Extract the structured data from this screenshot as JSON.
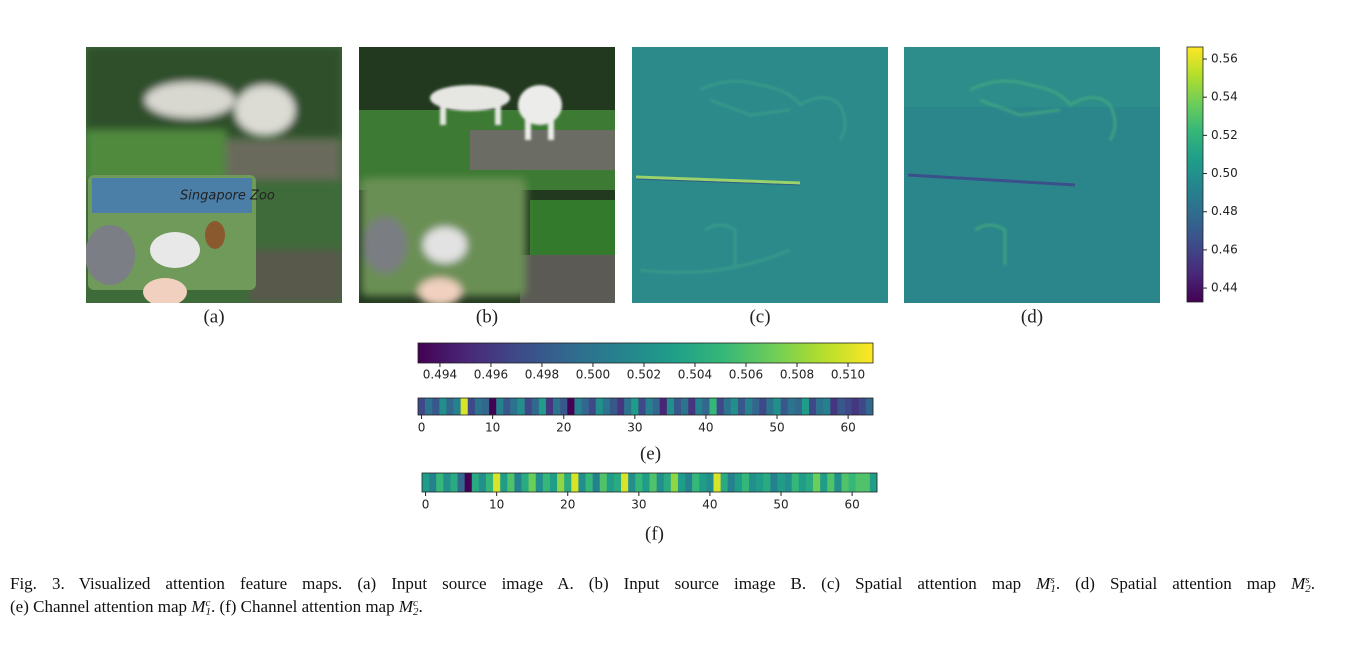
{
  "panels": [
    {
      "label": "(a)"
    },
    {
      "label": "(b)"
    },
    {
      "label": "(c)"
    },
    {
      "label": "(d)"
    }
  ],
  "colorbar_vertical": {
    "lim": [
      0.4327,
      0.5663
    ],
    "ticks": [
      0.44,
      0.46,
      0.48,
      {
        "value": 0.5,
        "label": "0.50"
      },
      0.52,
      0.54,
      0.56
    ]
  },
  "colorbar_horizontal": {
    "lim": [
      0.49314,
      0.51098
    ],
    "ticks": [
      0.494,
      0.496,
      0.498,
      {
        "value": 0.5,
        "label": "0.500"
      },
      0.502,
      0.504,
      0.506,
      0.508,
      {
        "value": 0.51,
        "label": "0.510"
      }
    ]
  },
  "strips": [
    {
      "label": "(e)",
      "xlim": [
        -0.5,
        63.5
      ],
      "xticks": [
        0,
        10,
        20,
        30,
        40,
        50,
        60
      ],
      "values": [
        0.497,
        0.5,
        0.498,
        0.502,
        0.499,
        0.501,
        0.51,
        0.497,
        0.5,
        0.499,
        0.493,
        0.501,
        0.498,
        0.5,
        0.502,
        0.497,
        0.499,
        0.503,
        0.496,
        0.5,
        0.498,
        0.493,
        0.501,
        0.499,
        0.497,
        0.502,
        0.5,
        0.498,
        0.496,
        0.5,
        0.503,
        0.497,
        0.501,
        0.499,
        0.495,
        0.502,
        0.498,
        0.5,
        0.496,
        0.501,
        0.499,
        0.505,
        0.497,
        0.5,
        0.502,
        0.498,
        0.501,
        0.499,
        0.497,
        0.5,
        0.502,
        0.498,
        0.5,
        0.499,
        0.503,
        0.497,
        0.5,
        0.501,
        0.496,
        0.498,
        0.497,
        0.496,
        0.497,
        0.499
      ]
    },
    {
      "label": "(f)",
      "xlim": [
        -0.5,
        63.5
      ],
      "xticks": [
        0,
        10,
        20,
        30,
        40,
        50,
        60
      ],
      "values": [
        0.503,
        0.501,
        0.505,
        0.502,
        0.504,
        0.499,
        0.493,
        0.504,
        0.502,
        0.505,
        0.51,
        0.503,
        0.506,
        0.501,
        0.504,
        0.507,
        0.502,
        0.505,
        0.503,
        0.508,
        0.504,
        0.51,
        0.502,
        0.505,
        0.501,
        0.506,
        0.503,
        0.504,
        0.51,
        0.502,
        0.505,
        0.503,
        0.506,
        0.502,
        0.504,
        0.508,
        0.503,
        0.501,
        0.505,
        0.503,
        0.502,
        0.51,
        0.504,
        0.501,
        0.503,
        0.505,
        0.502,
        0.503,
        0.504,
        0.501,
        0.503,
        0.502,
        0.505,
        0.503,
        0.504,
        0.507,
        0.503,
        0.506,
        0.502,
        0.506,
        0.505,
        0.506,
        0.506,
        0.503
      ]
    }
  ],
  "caption": {
    "lines": [
      [
        "Fig. 3.",
        "Visualized attention feature maps. (a) Input source image A. (b) Input source image B. (c) Spatial attention map ",
        {
          "base": "M",
          "sub": "1",
          "sup": "s"
        },
        ". (d) Spatial attention map ",
        {
          "base": "M",
          "sub": "2",
          "sup": "s"
        },
        "."
      ],
      [
        "(e) Channel attention map ",
        {
          "base": "M",
          "sub": "1",
          "sup": "c"
        },
        ". (f) Channel attention map ",
        {
          "base": "M",
          "sub": "2",
          "sup": "c"
        },
        "."
      ]
    ]
  }
}
